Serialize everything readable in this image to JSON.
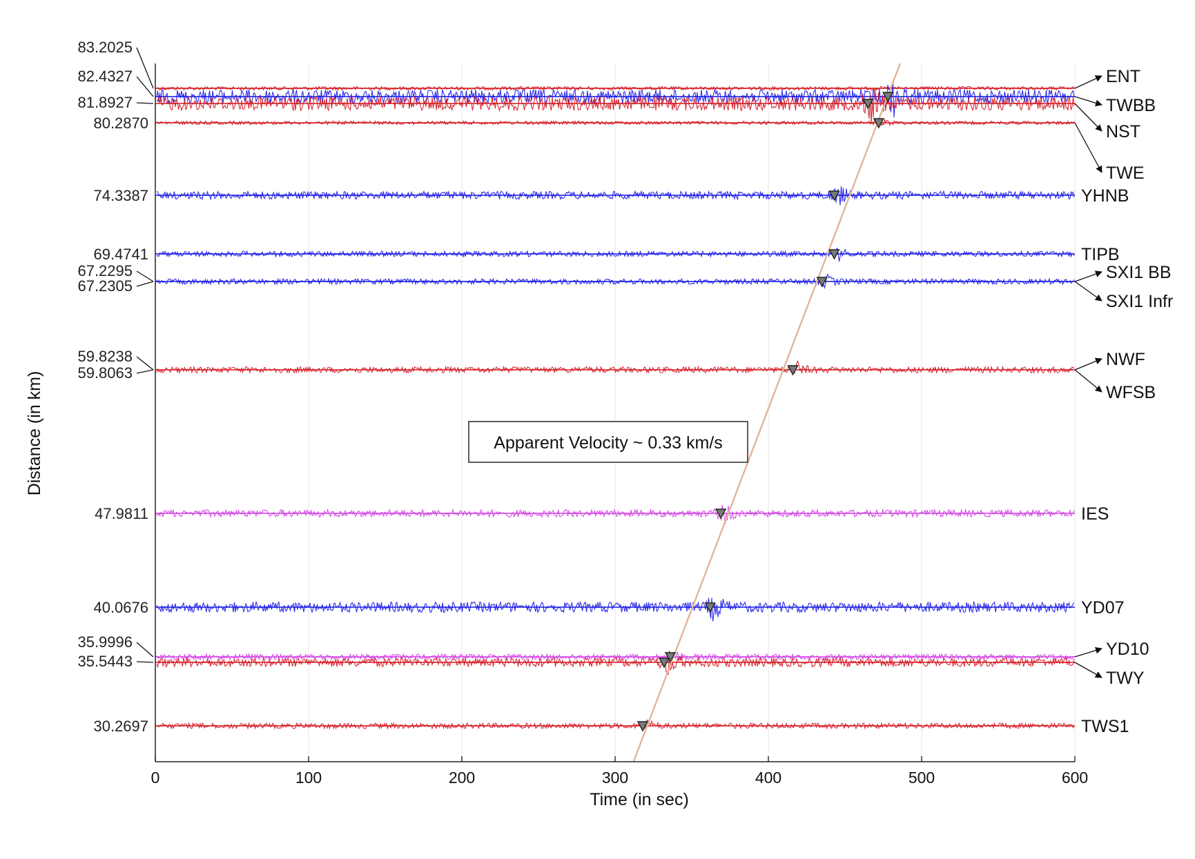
{
  "chart_data": {
    "type": "line",
    "xlabel": "Time (in sec)",
    "ylabel": "Distance (in km)",
    "xlim": [
      0,
      600
    ],
    "xticks": [
      "0",
      "100",
      "200",
      "300",
      "400",
      "500",
      "600"
    ],
    "grid": "vertical",
    "colors": {
      "blue": "#1414e6",
      "red": "#d4141e",
      "magenta": "#d23ce6",
      "moveout": "#e2b49a",
      "marker": "#7a7a7a"
    },
    "traces": [
      {
        "station": "ENT",
        "distance": "83.2025",
        "color": "red",
        "pick": null,
        "amp": 0.15
      },
      {
        "station": "TWBB",
        "distance": "82.4327",
        "color": "blue",
        "pick": 478,
        "amp": 1.0
      },
      {
        "station": "NST",
        "distance": "81.8927",
        "color": "red",
        "pick": 465,
        "amp": 1.0
      },
      {
        "station": "TWE",
        "distance": "80.2870",
        "color": "red",
        "pick": 472,
        "amp": 0.15
      },
      {
        "station": "YHNB",
        "distance": "74.3387",
        "color": "blue",
        "pick": 443,
        "amp": 0.5
      },
      {
        "station": "TIPB",
        "distance": "69.4741",
        "color": "blue",
        "pick": 443,
        "amp": 0.3
      },
      {
        "station": "SXI1 BB",
        "distance": "67.2295",
        "color": "blue",
        "pick": 435,
        "amp": 0.3
      },
      {
        "station": "SXI1 Infr",
        "distance": "67.2305",
        "color": "blue",
        "pick": null,
        "amp": 0.0
      },
      {
        "station": "NWF",
        "distance": "59.8238",
        "color": "red",
        "pick": 416,
        "amp": 0.35
      },
      {
        "station": "WFSB",
        "distance": "59.8063",
        "color": "red",
        "pick": null,
        "amp": 0.0
      },
      {
        "station": "IES",
        "distance": "47.9811",
        "color": "magenta",
        "pick": 369,
        "amp": 0.45
      },
      {
        "station": "YD07",
        "distance": "40.0676",
        "color": "blue",
        "pick": 362,
        "amp": 0.7
      },
      {
        "station": "YD10",
        "distance": "35.9996",
        "color": "magenta",
        "pick": 336,
        "amp": 0.3
      },
      {
        "station": "TWY",
        "distance": "35.5443",
        "color": "red",
        "pick": 332,
        "amp": 0.6
      },
      {
        "station": "TWS1",
        "distance": "30.2697",
        "color": "red",
        "pick": 318,
        "amp": 0.3
      }
    ],
    "moveout_line": {
      "from": {
        "time": 312,
        "distance": 27.5
      },
      "to": {
        "time": 486,
        "distance": 86.0
      }
    },
    "annotation": "Apparent Velocity ~ 0.33 km/s"
  }
}
